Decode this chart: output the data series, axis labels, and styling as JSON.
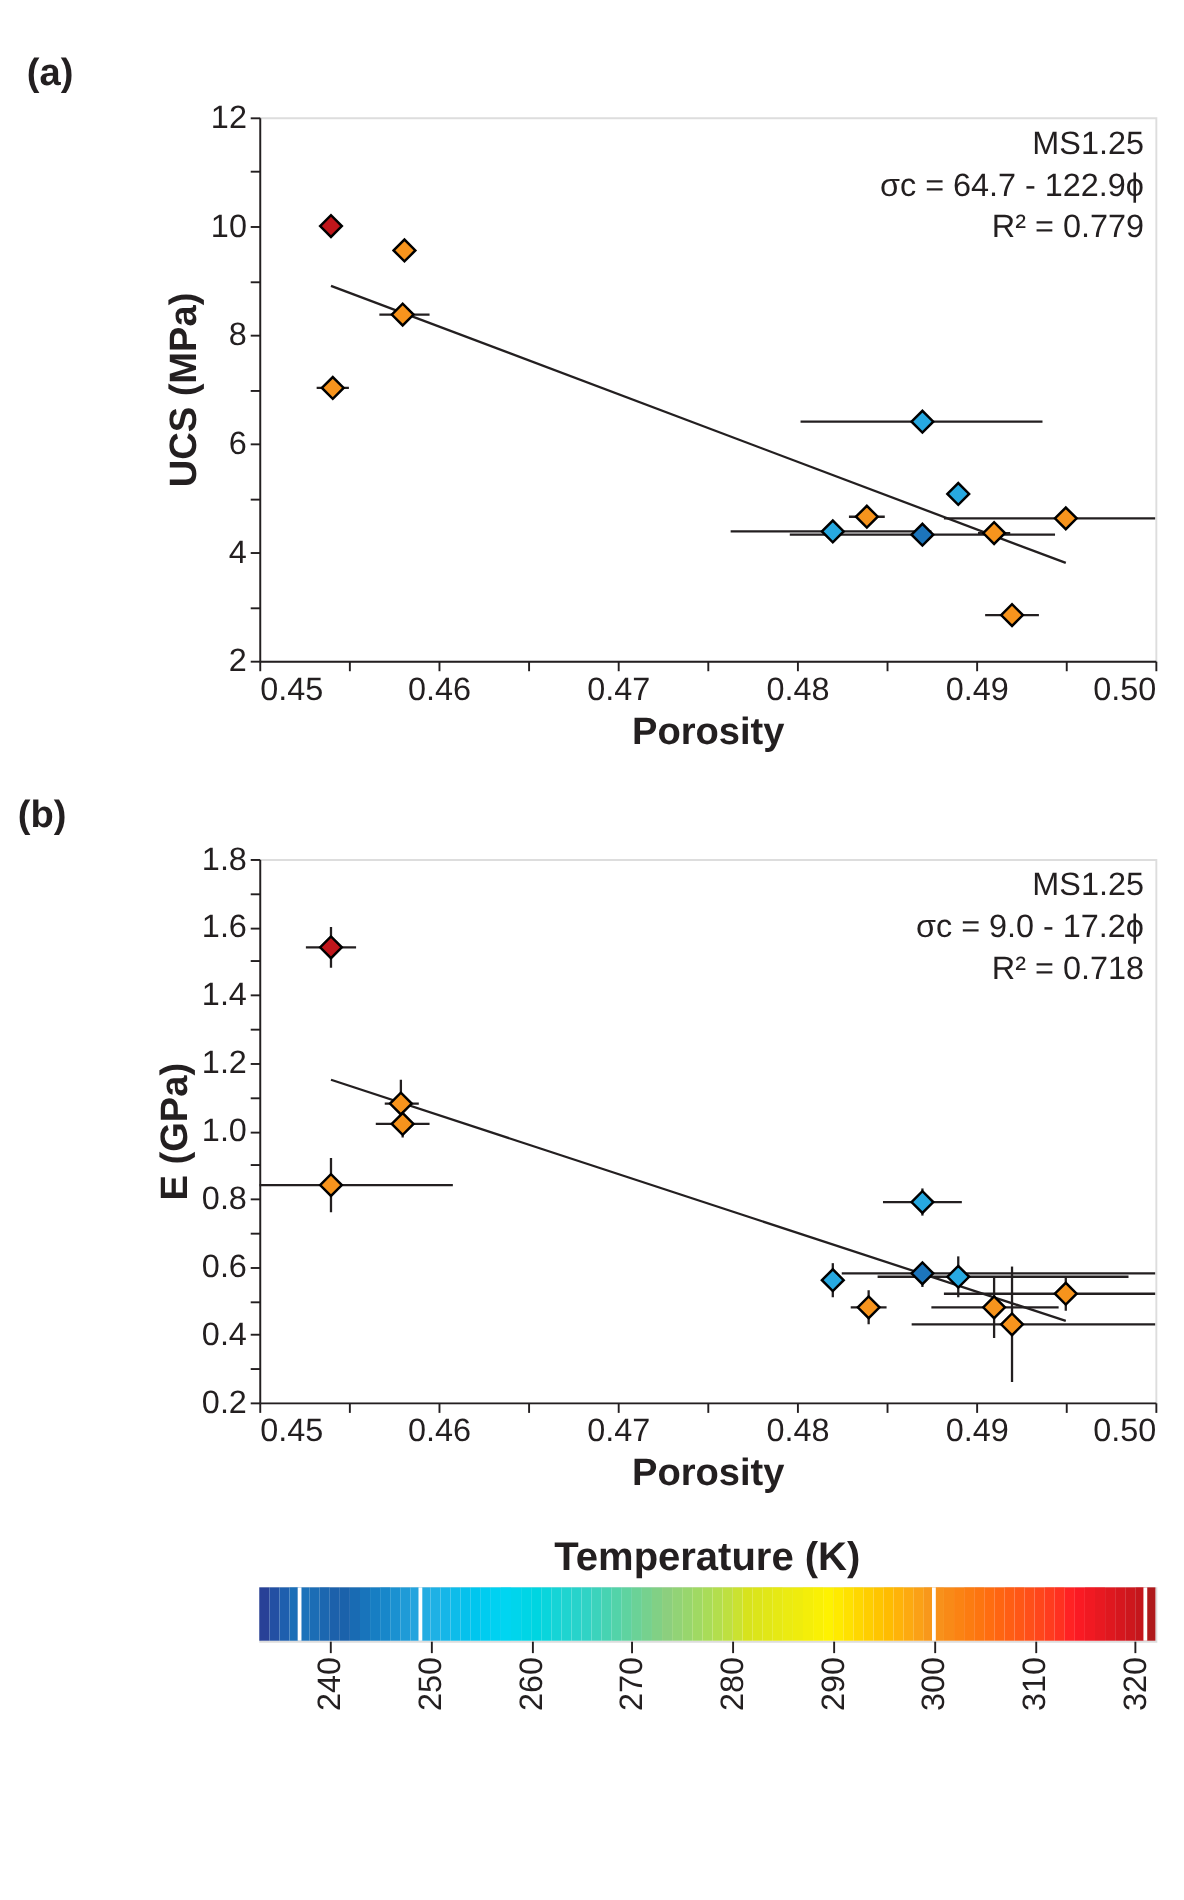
{
  "chart_data": [
    {
      "type": "scatter",
      "title": "(a)",
      "xlabel": "Porosity",
      "ylabel": "UCS (MPa)",
      "grid": false,
      "annotations": [
        "MS1.25",
        "σc = 64.7 - 122.9ϕ",
        "R² = 0.779"
      ],
      "xlim": [
        0.45,
        0.5
      ],
      "ylim": [
        2,
        12
      ],
      "xticks": [
        {
          "value": 0.45,
          "label": "0.45"
        },
        {
          "value": 0.455,
          "label": null
        },
        {
          "value": 0.46,
          "label": "0.46"
        },
        {
          "value": 0.465,
          "label": null
        },
        {
          "value": 0.47,
          "label": "0.47"
        },
        {
          "value": 0.475,
          "label": null
        },
        {
          "value": 0.48,
          "label": "0.48"
        },
        {
          "value": 0.485,
          "label": null
        },
        {
          "value": 0.49,
          "label": "0.49"
        },
        {
          "value": 0.495,
          "label": null
        },
        {
          "value": 0.5,
          "label": "0.50"
        }
      ],
      "yticks": [
        2,
        {
          "value": 3,
          "label": null
        },
        4,
        {
          "value": 5,
          "label": null
        },
        6,
        {
          "value": 7,
          "label": null
        },
        8,
        {
          "value": 9,
          "label": null
        },
        10,
        {
          "value": 11,
          "label": null
        },
        12
      ],
      "series": [
        {
          "marker": "diamond",
          "x": [
            0.454,
            0.4581,
            0.458,
            0.4541,
            0.487,
            0.489,
            0.4839,
            0.495,
            0.482,
            0.487,
            0.491,
            0.492
          ],
          "values": [
            10.0,
            9.55,
            8.37,
            7.02,
            6.4,
            5.07,
            4.65,
            4.62,
            4.38,
            4.32,
            4.35,
            2.84
          ],
          "colors": [
            "#c0161b",
            "#f7941d",
            "#f7941d",
            "#f7941d",
            "#27a9e1",
            "#27a9e1",
            "#f7941d",
            "#f7941d",
            "#27a9e1",
            "#1c75bc",
            "#f7941d",
            "#f7941d"
          ],
          "xerrors": [
            null,
            null,
            [
              0.4567,
              0.4595
            ],
            [
              0.4532,
              0.455
            ],
            [
              0.4802,
              0.4937
            ],
            null,
            [
              0.4829,
              0.4849
            ],
            [
              0.4882,
              0.5
            ],
            [
              0.4763,
              0.4875
            ],
            [
              0.4796,
              0.4944
            ],
            [
              0.4901,
              0.4919
            ],
            [
              0.4905,
              0.4935
            ]
          ]
        },
        {
          "type": "line",
          "color": "#231f20",
          "x": [
            0.454,
            0.495
          ],
          "values": [
            8.9,
            3.8
          ]
        }
      ]
    },
    {
      "type": "scatter",
      "title": "(b)",
      "xlabel": "Porosity",
      "ylabel": "E (GPa)",
      "grid": false,
      "annotations": [
        "MS1.25",
        "σc = 9.0 - 17.2ϕ",
        "R² = 0.718"
      ],
      "xlim": [
        0.45,
        0.5
      ],
      "ylim": [
        0.2,
        1.8
      ],
      "clim": [
        233,
        322
      ],
      "clabel": "Temperature (K)",
      "cticks": [
        240,
        250,
        260,
        270,
        280,
        290,
        300,
        310,
        320
      ],
      "xticks": [
        {
          "value": 0.45,
          "label": "0.45"
        },
        {
          "value": 0.455,
          "label": null
        },
        {
          "value": 0.46,
          "label": "0.46"
        },
        {
          "value": 0.465,
          "label": null
        },
        {
          "value": 0.47,
          "label": "0.47"
        },
        {
          "value": 0.475,
          "label": null
        },
        {
          "value": 0.48,
          "label": "0.48"
        },
        {
          "value": 0.485,
          "label": null
        },
        {
          "value": 0.49,
          "label": "0.49"
        },
        {
          "value": 0.495,
          "label": null
        },
        {
          "value": 0.5,
          "label": "0.50"
        }
      ],
      "yticks": [
        0.2,
        {
          "value": 0.3,
          "label": null
        },
        0.4,
        {
          "value": 0.5,
          "label": null
        },
        0.6,
        {
          "value": 0.7,
          "label": null
        },
        0.8,
        {
          "value": 0.9,
          "label": null
        },
        {
          "value": 1.0,
          "label": "1.0"
        },
        {
          "value": 1.1,
          "label": null
        },
        1.2,
        {
          "value": 1.3,
          "label": null
        },
        1.4,
        {
          "value": 1.5,
          "label": null
        },
        1.6,
        {
          "value": 1.7,
          "label": null
        },
        1.8
      ],
      "series": [
        {
          "marker": "diamond",
          "x": [
            0.454,
            0.4579,
            0.458,
            0.454,
            0.487,
            0.482,
            0.487,
            0.489,
            0.484,
            0.491,
            0.492,
            0.495
          ],
          "values": [
            1.54,
            1.08,
            1.02,
            0.84,
            0.79,
            0.56,
            0.58,
            0.57,
            0.48,
            0.48,
            0.43,
            0.52
          ],
          "cvalues": [
            321,
            300,
            300,
            300,
            249,
            249,
            237,
            249,
            300,
            300,
            300,
            300
          ],
          "colors": [
            "#c0161b",
            "#f7941d",
            "#f7941d",
            "#f7941d",
            "#27a9e1",
            "#27a9e1",
            "#1c75bc",
            "#27a9e1",
            "#f7941d",
            "#f7941d",
            "#f7941d",
            "#f7941d"
          ],
          "errors": [
            [
              1.48,
              1.6
            ],
            [
              1.02,
              1.15
            ],
            [
              0.98,
              1.06
            ],
            [
              0.76,
              0.92
            ],
            [
              0.75,
              0.83
            ],
            [
              0.51,
              0.61
            ],
            [
              0.54,
              0.61
            ],
            [
              0.51,
              0.63
            ],
            [
              0.43,
              0.53
            ],
            [
              0.39,
              0.57
            ],
            [
              0.26,
              0.6
            ],
            [
              0.47,
              0.57
            ]
          ],
          "xerrors": [
            [
              0.4526,
              0.4554
            ],
            [
              0.457,
              0.4589
            ],
            [
              0.4565,
              0.4595
            ],
            [
              0.45,
              0.4608
            ],
            [
              0.4848,
              0.4892
            ],
            null,
            [
              0.4825,
              0.5
            ],
            [
              0.4845,
              0.4985
            ],
            [
              0.483,
              0.485
            ],
            [
              0.4875,
              0.4946
            ],
            [
              0.4864,
              0.5
            ],
            [
              0.4882,
              0.5
            ]
          ]
        },
        {
          "type": "line",
          "color": "#231f20",
          "x": [
            0.454,
            0.495
          ],
          "values": [
            1.15,
            0.44
          ]
        }
      ]
    }
  ]
}
